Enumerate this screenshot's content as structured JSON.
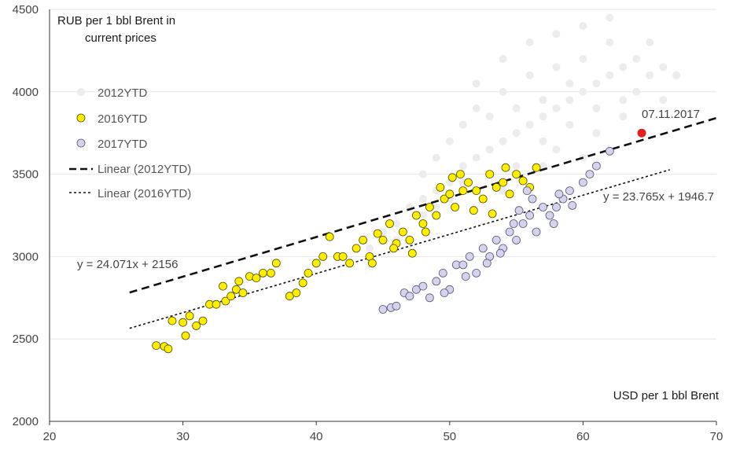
{
  "chart_data": {
    "type": "scatter",
    "title": "",
    "ylabel_line1": "RUB per 1 bbl Brent in",
    "ylabel_line2": "current prices",
    "xlabel": "USD per 1 bbl Brent",
    "xlim": [
      20,
      70
    ],
    "ylim": [
      2000,
      4500
    ],
    "xticks": [
      20,
      30,
      40,
      50,
      60,
      70
    ],
    "yticks": [
      2000,
      2500,
      3000,
      3500,
      4000,
      4500
    ],
    "grid": "horizontal",
    "legend_position": "top-left",
    "legend": [
      {
        "label": "2012YTD",
        "kind": "marker",
        "color": "#ececee"
      },
      {
        "label": "2016YTD",
        "kind": "marker",
        "color": "#ffee00"
      },
      {
        "label": "2017YTD",
        "kind": "marker",
        "color": "#d5d3ec"
      },
      {
        "label": "Linear (2012YTD)",
        "kind": "long-dash"
      },
      {
        "label": "Linear (2016YTD)",
        "kind": "short-dash"
      }
    ],
    "series": [
      {
        "name": "2012YTD",
        "color": "#ececee",
        "stroke": "none",
        "points": [
          [
            45,
            3150
          ],
          [
            46,
            3200
          ],
          [
            47,
            3300
          ],
          [
            48,
            3350
          ],
          [
            48,
            3500
          ],
          [
            49,
            3400
          ],
          [
            49,
            3600
          ],
          [
            50,
            3450
          ],
          [
            50,
            3700
          ],
          [
            51,
            3550
          ],
          [
            51,
            3800
          ],
          [
            52,
            3600
          ],
          [
            52,
            3900
          ],
          [
            53,
            3650
          ],
          [
            53,
            3850
          ],
          [
            54,
            3700
          ],
          [
            54,
            4000
          ],
          [
            55,
            3750
          ],
          [
            55,
            3900
          ],
          [
            56,
            3800
          ],
          [
            56,
            4100
          ],
          [
            57,
            3850
          ],
          [
            57,
            3950
          ],
          [
            58,
            3900
          ],
          [
            58,
            4150
          ],
          [
            59,
            3950
          ],
          [
            59,
            4050
          ],
          [
            60,
            4000
          ],
          [
            60,
            4200
          ],
          [
            61,
            4050
          ],
          [
            61,
            3900
          ],
          [
            62,
            4100
          ],
          [
            62,
            4300
          ],
          [
            63,
            4150
          ],
          [
            63,
            3850
          ],
          [
            64,
            4200
          ],
          [
            64,
            4000
          ],
          [
            65,
            4100
          ],
          [
            65,
            4300
          ],
          [
            66,
            4150
          ],
          [
            66,
            3950
          ],
          [
            67,
            4100
          ],
          [
            50,
            3350
          ],
          [
            51,
            3450
          ],
          [
            53,
            3500
          ],
          [
            55,
            3550
          ],
          [
            57,
            3700
          ],
          [
            59,
            3800
          ],
          [
            61,
            3750
          ],
          [
            63,
            3950
          ],
          [
            52,
            4050
          ],
          [
            54,
            4200
          ],
          [
            56,
            4300
          ],
          [
            58,
            4350
          ],
          [
            60,
            4400
          ],
          [
            62,
            4450
          ],
          [
            44,
            3050
          ],
          [
            46,
            3100
          ],
          [
            48,
            3250
          ],
          [
            57,
            3550
          ],
          [
            54,
            3400
          ],
          [
            49,
            3300
          ],
          [
            58,
            3650
          ],
          [
            60,
            3600
          ]
        ]
      },
      {
        "name": "2016YTD",
        "color": "#ffee00",
        "stroke": "#4d4d00",
        "points": [
          [
            28,
            2460
          ],
          [
            28.6,
            2455
          ],
          [
            28.9,
            2440
          ],
          [
            29.2,
            2610
          ],
          [
            30,
            2600
          ],
          [
            30.2,
            2520
          ],
          [
            30.5,
            2640
          ],
          [
            31,
            2580
          ],
          [
            31.5,
            2610
          ],
          [
            32,
            2710
          ],
          [
            32.5,
            2710
          ],
          [
            33,
            2820
          ],
          [
            33.2,
            2730
          ],
          [
            33.6,
            2760
          ],
          [
            34,
            2800
          ],
          [
            34.2,
            2850
          ],
          [
            34.5,
            2780
          ],
          [
            35,
            2880
          ],
          [
            35.5,
            2870
          ],
          [
            36,
            2900
          ],
          [
            36.6,
            2900
          ],
          [
            37,
            2960
          ],
          [
            38,
            2760
          ],
          [
            38.5,
            2780
          ],
          [
            39,
            2840
          ],
          [
            39.4,
            2900
          ],
          [
            40,
            2960
          ],
          [
            40.5,
            3000
          ],
          [
            41,
            3120
          ],
          [
            41.6,
            3000
          ],
          [
            42,
            3000
          ],
          [
            42.5,
            2960
          ],
          [
            43,
            3050
          ],
          [
            43.5,
            3100
          ],
          [
            44,
            3000
          ],
          [
            44.6,
            3140
          ],
          [
            45,
            3100
          ],
          [
            45.5,
            3200
          ],
          [
            46,
            3080
          ],
          [
            46.5,
            3150
          ],
          [
            47,
            3100
          ],
          [
            47.5,
            3250
          ],
          [
            48,
            3200
          ],
          [
            48.5,
            3300
          ],
          [
            49,
            3250
          ],
          [
            49.3,
            3420
          ],
          [
            49.6,
            3350
          ],
          [
            50,
            3380
          ],
          [
            50.4,
            3300
          ],
          [
            50.8,
            3500
          ],
          [
            51,
            3400
          ],
          [
            51.4,
            3450
          ],
          [
            52,
            3400
          ],
          [
            52.5,
            3350
          ],
          [
            53,
            3500
          ],
          [
            53.5,
            3420
          ],
          [
            54,
            3450
          ],
          [
            54.5,
            3380
          ],
          [
            55,
            3500
          ],
          [
            55.5,
            3460
          ],
          [
            56,
            3420
          ],
          [
            56.5,
            3540
          ],
          [
            47.2,
            3020
          ],
          [
            48.2,
            3150
          ],
          [
            45.8,
            3050
          ],
          [
            44.2,
            2960
          ],
          [
            50.2,
            3480
          ],
          [
            51.8,
            3280
          ],
          [
            53.2,
            3260
          ],
          [
            54.2,
            3540
          ]
        ]
      },
      {
        "name": "2017YTD",
        "color": "#d5d3ec",
        "stroke": "#55557a",
        "points": [
          [
            45,
            2680
          ],
          [
            45.6,
            2690
          ],
          [
            46,
            2700
          ],
          [
            46.6,
            2780
          ],
          [
            47,
            2760
          ],
          [
            47.5,
            2800
          ],
          [
            48,
            2820
          ],
          [
            48.5,
            2750
          ],
          [
            49,
            2850
          ],
          [
            49.5,
            2900
          ],
          [
            50,
            2800
          ],
          [
            50.5,
            2950
          ],
          [
            51,
            2950
          ],
          [
            51.5,
            3000
          ],
          [
            52,
            2900
          ],
          [
            52.5,
            3050
          ],
          [
            53,
            3000
          ],
          [
            53.5,
            3100
          ],
          [
            54,
            3050
          ],
          [
            54.5,
            3150
          ],
          [
            55,
            3100
          ],
          [
            55.5,
            3200
          ],
          [
            56,
            3250
          ],
          [
            56.5,
            3150
          ],
          [
            57,
            3300
          ],
          [
            57.5,
            3250
          ],
          [
            58,
            3300
          ],
          [
            58.5,
            3350
          ],
          [
            59,
            3400
          ],
          [
            60,
            3450
          ],
          [
            60.5,
            3500
          ],
          [
            61,
            3550
          ],
          [
            62,
            3640
          ],
          [
            55.2,
            3280
          ],
          [
            55.8,
            3400
          ],
          [
            56.2,
            3350
          ],
          [
            49.6,
            2780
          ],
          [
            51.2,
            2880
          ],
          [
            52.8,
            2960
          ],
          [
            54.8,
            3200
          ],
          [
            58.2,
            3380
          ],
          [
            59.2,
            3310
          ],
          [
            53.8,
            3020
          ],
          [
            57.8,
            3200
          ]
        ]
      }
    ],
    "highlight_point": {
      "label": "07.11.2017",
      "x": 64.4,
      "y": 3750,
      "color": "#e32020"
    },
    "trendlines": [
      {
        "name": "Linear (2012YTD)",
        "equation": "y = 24.071x + 2156",
        "slope": 24.071,
        "intercept": 2156,
        "x_range": [
          26,
          70
        ],
        "style": "long-dash"
      },
      {
        "name": "Linear (2016YTD)",
        "equation": "y = 23.765x + 1946.7",
        "slope": 23.765,
        "intercept": 1946.7,
        "x_range": [
          26,
          66.5
        ],
        "style": "short-dash"
      }
    ]
  }
}
